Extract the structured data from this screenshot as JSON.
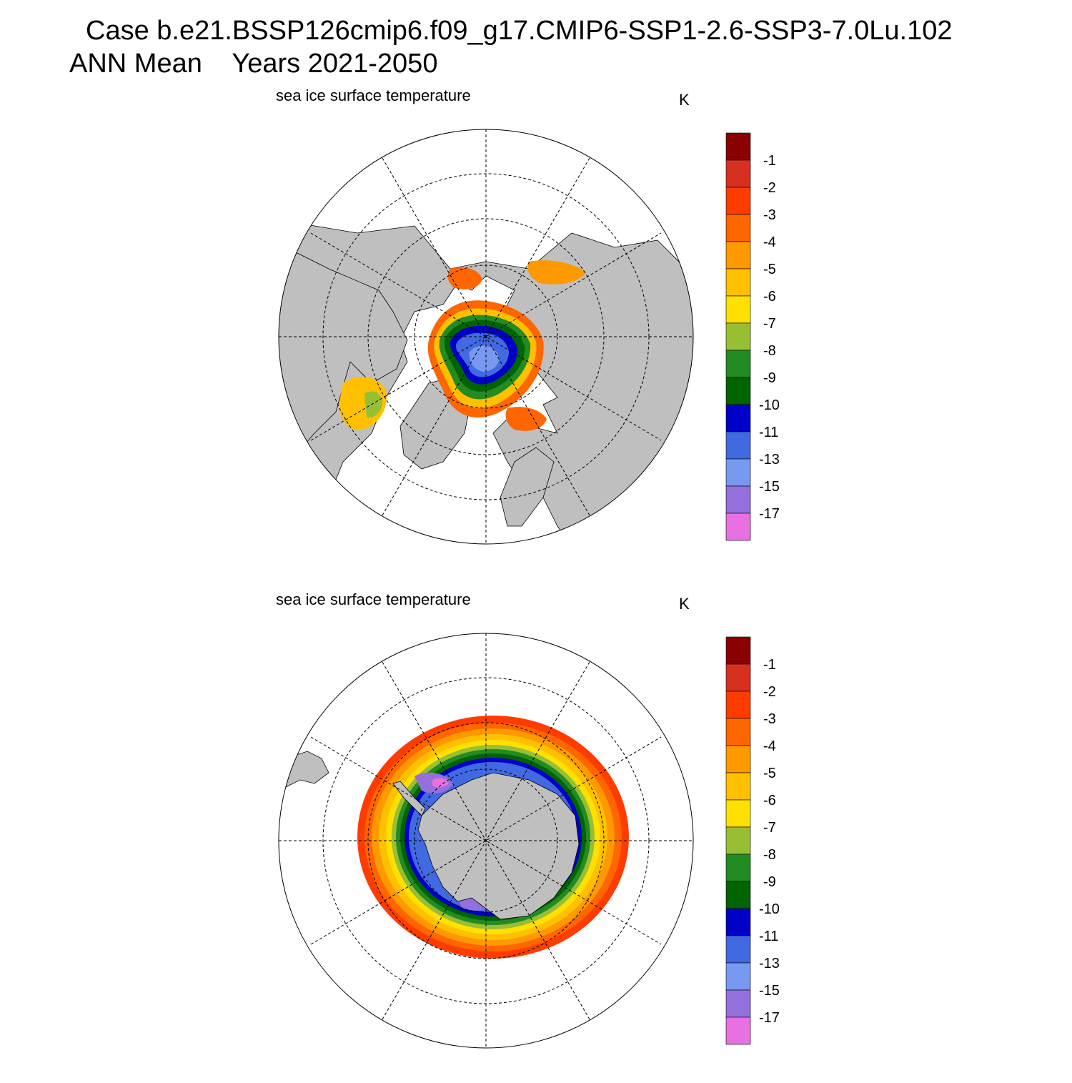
{
  "header": {
    "title_line1": "Case b.e21.BSSP126cmip6.f09_g17.CMIP6-SSP1-2.6-SSP3-7.0Lu.102",
    "title_line2": "ANN Mean    Years 2021-2050"
  },
  "colors": {
    "land": "#bfbfbf",
    "background": "#ffffff"
  },
  "legend": {
    "unit": "K",
    "tick_labels": [
      "-1",
      "-2",
      "-3",
      "-4",
      "-5",
      "-6",
      "-7",
      "-8",
      "-9",
      "-10",
      "-11",
      "-13",
      "-15",
      "-17"
    ],
    "colors": [
      "#8b0000",
      "#d7301f",
      "#ff3c00",
      "#ff6600",
      "#ff9900",
      "#ffc000",
      "#ffe000",
      "#98bf34",
      "#228b22",
      "#006400",
      "#0000c8",
      "#4169e1",
      "#7799f0",
      "#9370db",
      "#e870e0"
    ]
  },
  "panels": [
    {
      "id": "north",
      "title": "sea ice surface temperature",
      "unit": "K",
      "hemisphere": "Arctic (north polar stereographic)"
    },
    {
      "id": "south",
      "title": "sea ice surface temperature",
      "unit": "K",
      "hemisphere": "Antarctic (south polar stereographic)"
    }
  ],
  "chart_data": {
    "type": "heatmap",
    "variable": "sea ice surface temperature",
    "units": "K",
    "period": "ANN Mean, Years 2021-2050",
    "levels": [
      -1,
      -2,
      -3,
      -4,
      -5,
      -6,
      -7,
      -8,
      -9,
      -10,
      -11,
      -13,
      -15,
      -17
    ],
    "level_colors": [
      "#8b0000",
      "#d7301f",
      "#ff3c00",
      "#ff6600",
      "#ff9900",
      "#ffc000",
      "#ffe000",
      "#98bf34",
      "#228b22",
      "#006400",
      "#0000c8",
      "#4169e1",
      "#7799f0",
      "#9370db",
      "#e870e0"
    ],
    "maps": [
      {
        "region": "Arctic",
        "coldest_band": "-13 to -15 (central Arctic)",
        "warmest_band": "-1 to -3 (ice edge)"
      },
      {
        "region": "Antarctic",
        "coldest_band": "below -17 (Weddell/Ross embayments)",
        "warmest_band": "-1 to -3 (outer ice edge)"
      }
    ]
  }
}
